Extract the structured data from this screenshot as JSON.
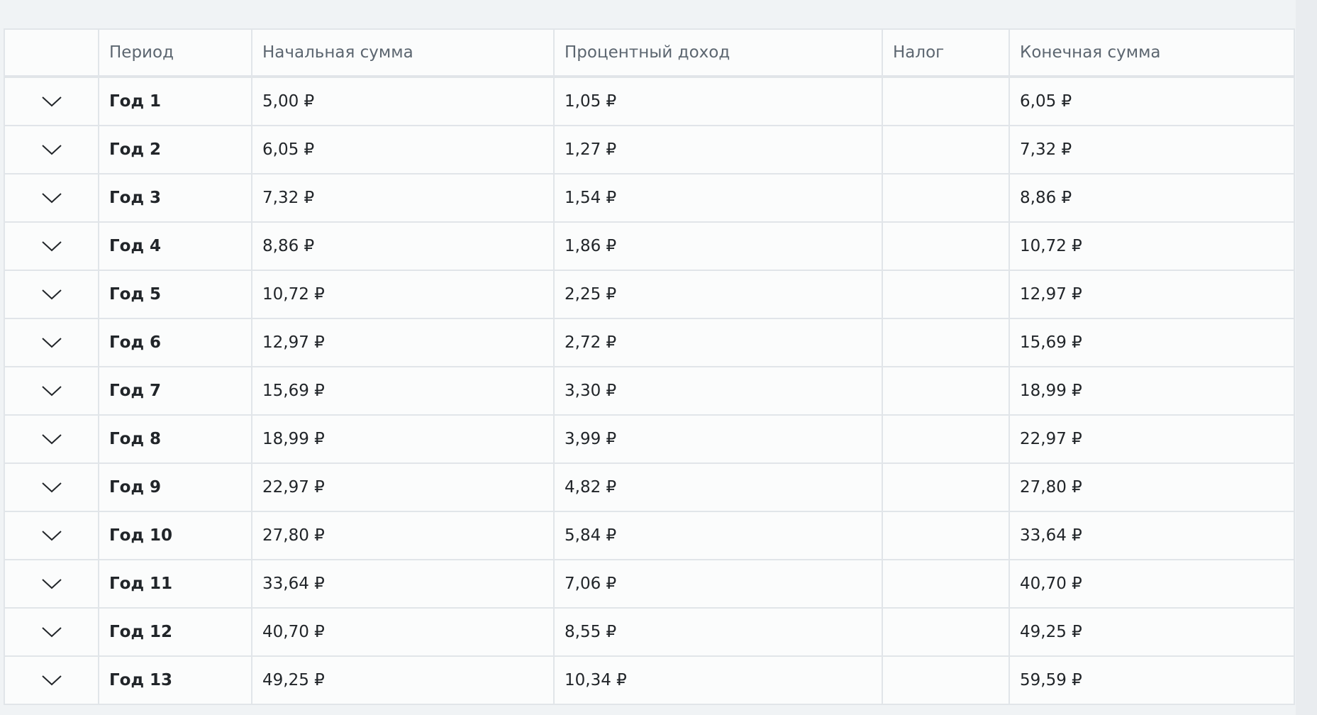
{
  "table": {
    "headers": [
      "",
      "Период",
      "Начальная сумма",
      "Процентный доход",
      "Налог",
      "Конечная сумма"
    ],
    "rows": [
      {
        "period": "Год 1",
        "start": "5,00 ₽",
        "interest": "1,05 ₽",
        "tax": "",
        "end": "6,05 ₽"
      },
      {
        "period": "Год 2",
        "start": "6,05 ₽",
        "interest": "1,27 ₽",
        "tax": "",
        "end": "7,32 ₽"
      },
      {
        "period": "Год 3",
        "start": "7,32 ₽",
        "interest": "1,54 ₽",
        "tax": "",
        "end": "8,86 ₽"
      },
      {
        "period": "Год 4",
        "start": "8,86 ₽",
        "interest": "1,86 ₽",
        "tax": "",
        "end": "10,72 ₽"
      },
      {
        "period": "Год 5",
        "start": "10,72 ₽",
        "interest": "2,25 ₽",
        "tax": "",
        "end": "12,97 ₽"
      },
      {
        "period": "Год 6",
        "start": "12,97 ₽",
        "interest": "2,72 ₽",
        "tax": "",
        "end": "15,69 ₽"
      },
      {
        "period": "Год 7",
        "start": "15,69 ₽",
        "interest": "3,30 ₽",
        "tax": "",
        "end": "18,99 ₽"
      },
      {
        "period": "Год 8",
        "start": "18,99 ₽",
        "interest": "3,99 ₽",
        "tax": "",
        "end": "22,97 ₽"
      },
      {
        "period": "Год 9",
        "start": "22,97 ₽",
        "interest": "4,82 ₽",
        "tax": "",
        "end": "27,80 ₽"
      },
      {
        "period": "Год 10",
        "start": "27,80 ₽",
        "interest": "5,84 ₽",
        "tax": "",
        "end": "33,64 ₽"
      },
      {
        "period": "Год 11",
        "start": "33,64 ₽",
        "interest": "7,06 ₽",
        "tax": "",
        "end": "40,70 ₽"
      },
      {
        "period": "Год 12",
        "start": "40,70 ₽",
        "interest": "8,55 ₽",
        "tax": "",
        "end": "49,25 ₽"
      },
      {
        "period": "Год 13",
        "start": "49,25 ₽",
        "interest": "10,34 ₽",
        "tax": "",
        "end": "59,59 ₽"
      }
    ],
    "row_icon": "chevron-down-icon"
  }
}
